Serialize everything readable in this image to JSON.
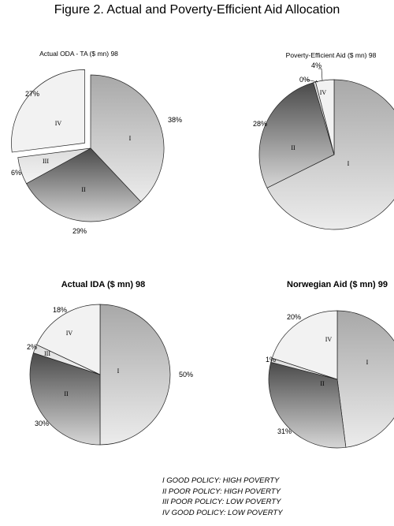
{
  "figure_title": "Figure 2. Actual and Poverty-Efficient Aid Allocation",
  "legend": [
    "I GOOD POLICY: HIGH POVERTY",
    "II POOR POLICY: HIGH POVERTY",
    "III POOR POLICY: LOW POVERTY",
    "IV GOOD POLICY: LOW POVERTY"
  ],
  "chart_data": [
    {
      "type": "pie",
      "title": "Actual ODA - TA ($ mn) 98",
      "slices": [
        {
          "label": "I",
          "value": 38,
          "value_label": "38%"
        },
        {
          "label": "II",
          "value": 29,
          "value_label": "29%"
        },
        {
          "label": "III",
          "value": 6,
          "value_label": "6%"
        },
        {
          "label": "IV",
          "value": 27,
          "value_label": "27%"
        }
      ]
    },
    {
      "type": "pie",
      "title": "Poverty-Efficient Aid ($ mn) 98",
      "slices": [
        {
          "label": "I",
          "value": 68,
          "value_label": ""
        },
        {
          "label": "II",
          "value": 28,
          "value_label": "28%"
        },
        {
          "label": "III",
          "value": 0.5,
          "value_label": "0%"
        },
        {
          "label": "IV",
          "value": 4,
          "value_label": "4%"
        }
      ]
    },
    {
      "type": "pie",
      "title": "Actual IDA ($ mn) 98",
      "slices": [
        {
          "label": "I",
          "value": 50,
          "value_label": "50%"
        },
        {
          "label": "II",
          "value": 30,
          "value_label": "30%"
        },
        {
          "label": "III",
          "value": 2,
          "value_label": "2%"
        },
        {
          "label": "IV",
          "value": 18,
          "value_label": "18%"
        }
      ]
    },
    {
      "type": "pie",
      "title": "Norwegian Aid ($ mn) 99",
      "slices": [
        {
          "label": "I",
          "value": 48,
          "value_label": ""
        },
        {
          "label": "II",
          "value": 31,
          "value_label": "31%"
        },
        {
          "label": "III",
          "value": 1,
          "value_label": "1%"
        },
        {
          "label": "IV",
          "value": 20,
          "value_label": "20%"
        }
      ]
    }
  ]
}
